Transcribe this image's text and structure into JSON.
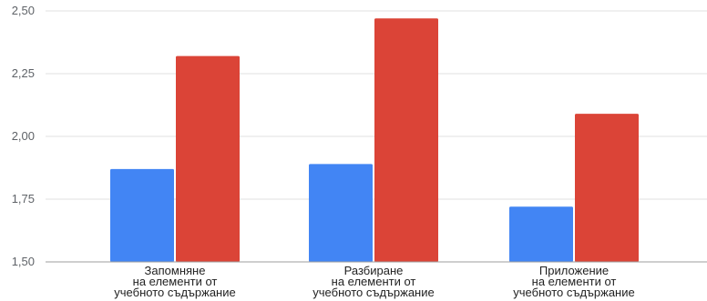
{
  "chart_data": {
    "type": "bar",
    "categories": [
      [
        "Запомняне",
        "на елементи от",
        "учебното съдържание"
      ],
      [
        "Разбиране",
        "на елементи от",
        "учебното съдържание"
      ],
      [
        "Приложение",
        "на елементи от",
        "учебното съдържание"
      ]
    ],
    "series": [
      {
        "color": "#4285f4",
        "values": [
          1.87,
          1.89,
          1.72
        ]
      },
      {
        "color": "#db4437",
        "values": [
          2.32,
          2.47,
          2.09
        ]
      }
    ],
    "ylim": [
      1.5,
      2.5
    ],
    "yticks": [
      "1,50",
      "1,75",
      "2,00",
      "2,25",
      "2,50"
    ],
    "ytick_values": [
      1.5,
      1.75,
      2.0,
      2.25,
      2.5
    ],
    "grid": true,
    "legend": "none",
    "grid_color": "#e0e0e0",
    "axis_color": "#9e9e9e"
  }
}
